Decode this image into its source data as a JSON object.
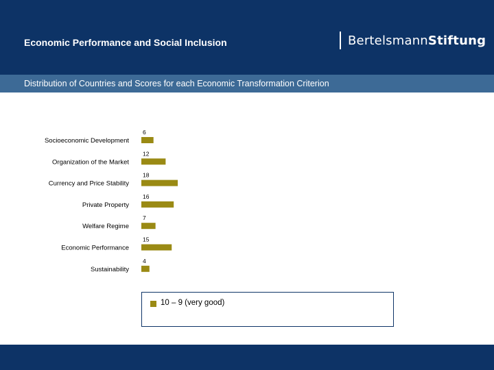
{
  "header": {
    "title": "Economic Performance and Social Inclusion",
    "logo_part1": "Bertelsmann",
    "logo_part2": "Stiftung"
  },
  "subtitle": "Distribution of Countries and Scores for each Economic Transformation Criterion",
  "colors": {
    "header_bg": "#0d3366",
    "subbar_bg": "#3d6a96",
    "bar": "#9a8a14"
  },
  "chart_data": {
    "type": "bar",
    "orientation": "horizontal",
    "categories": [
      "Socioeconomic Development",
      "Organization of the Market",
      "Currency and Price Stability",
      "Private Property",
      "Welfare Regime",
      "Economic Performance",
      "Sustainability"
    ],
    "series": [
      {
        "name": "10 – 9 (very good)",
        "values": [
          6,
          12,
          18,
          16,
          7,
          15,
          4
        ]
      }
    ],
    "legend_position": "bottom",
    "grid": false
  }
}
